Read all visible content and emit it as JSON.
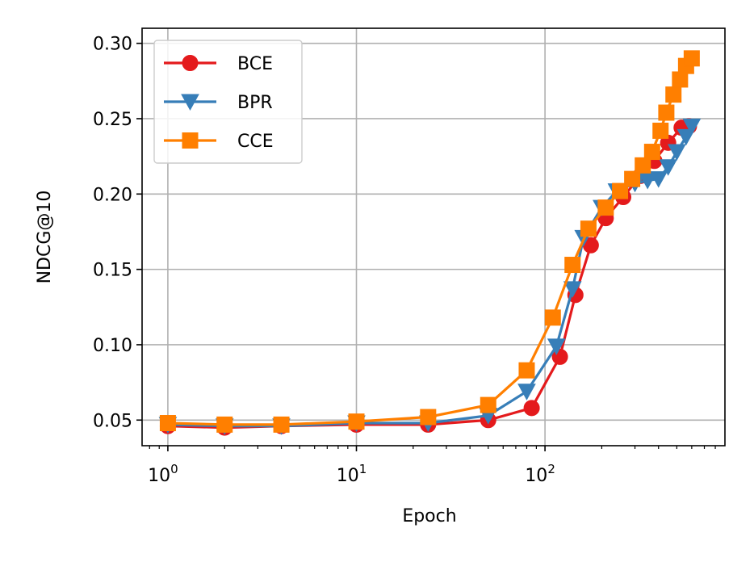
{
  "chart_data": {
    "type": "line",
    "xlabel": "Epoch",
    "ylabel": "NDCG@10",
    "xscale": "log",
    "xlim": [
      0.73,
      900
    ],
    "ylim": [
      0.033,
      0.31
    ],
    "x_ticks": [
      {
        "value": 1,
        "base": "10",
        "exp": "0"
      },
      {
        "value": 10,
        "base": "10",
        "exp": "1"
      },
      {
        "value": 100,
        "base": "10",
        "exp": "2"
      }
    ],
    "y_ticks": [
      {
        "value": 0.05,
        "label": "0.05"
      },
      {
        "value": 0.1,
        "label": "0.10"
      },
      {
        "value": 0.15,
        "label": "0.15"
      },
      {
        "value": 0.2,
        "label": "0.20"
      },
      {
        "value": 0.25,
        "label": "0.25"
      },
      {
        "value": 0.3,
        "label": "0.30"
      }
    ],
    "grid": true,
    "legend_position": "top-left",
    "series": [
      {
        "name": "BCE",
        "color": "#e41a1c",
        "marker": "circle",
        "x": [
          1,
          2,
          4,
          10,
          24,
          50,
          85,
          120,
          145,
          175,
          210,
          260,
          320,
          380,
          450,
          530,
          580
        ],
        "y": [
          0.046,
          0.045,
          0.046,
          0.047,
          0.047,
          0.05,
          0.058,
          0.092,
          0.133,
          0.166,
          0.184,
          0.198,
          0.212,
          0.222,
          0.234,
          0.244,
          0.245
        ]
      },
      {
        "name": "BPR",
        "color": "#377eb8",
        "marker": "triangle-down",
        "x": [
          1,
          2,
          4,
          10,
          24,
          50,
          80,
          115,
          140,
          160,
          200,
          240,
          300,
          350,
          400,
          450,
          500,
          560,
          600
        ],
        "y": [
          0.047,
          0.046,
          0.046,
          0.048,
          0.048,
          0.053,
          0.069,
          0.099,
          0.137,
          0.171,
          0.191,
          0.202,
          0.207,
          0.209,
          0.21,
          0.218,
          0.228,
          0.238,
          0.245
        ]
      },
      {
        "name": "CCE",
        "color": "#ff7f00",
        "marker": "square",
        "x": [
          1,
          2,
          4,
          10,
          24,
          50,
          80,
          110,
          140,
          170,
          210,
          250,
          290,
          330,
          370,
          410,
          440,
          480,
          520,
          560,
          600
        ],
        "y": [
          0.048,
          0.047,
          0.047,
          0.049,
          0.052,
          0.06,
          0.083,
          0.118,
          0.153,
          0.177,
          0.191,
          0.202,
          0.21,
          0.219,
          0.228,
          0.242,
          0.254,
          0.266,
          0.276,
          0.285,
          0.29
        ]
      }
    ]
  }
}
